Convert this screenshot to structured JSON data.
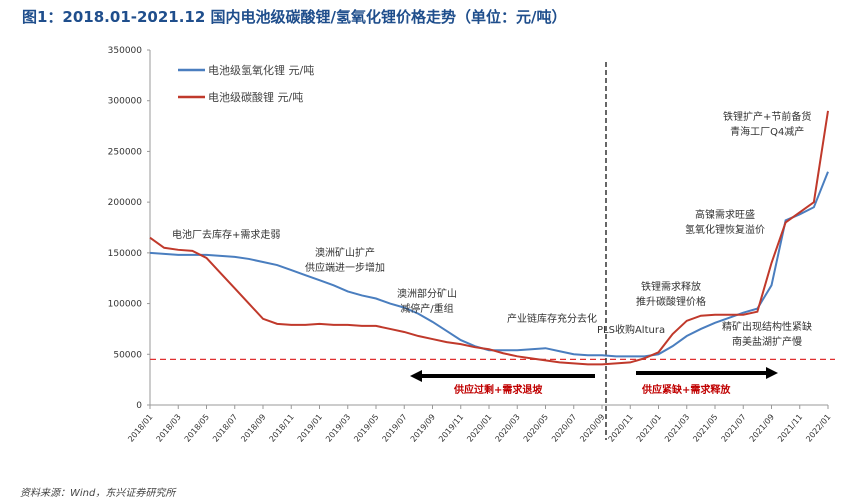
{
  "title": "图1：2018.01-2021.12 国内电池级碳酸锂/氢氧化锂价格走势（单位：元/吨）",
  "source": "资料来源：Wind，东兴证券研究所",
  "chart_data": {
    "type": "line",
    "title": "图1：2018.01-2021.12 国内电池级碳酸锂/氢氧化锂价格走势（单位：元/吨）",
    "ylim": [
      0,
      350000
    ],
    "yticks": [
      "0",
      "50000",
      "100000",
      "150000",
      "200000",
      "250000",
      "300000",
      "350000"
    ],
    "xticks": [
      "2018/01",
      "2018/03",
      "2018/05",
      "2018/07",
      "2018/09",
      "2018/11",
      "2019/01",
      "2019/03",
      "2019/05",
      "2019/07",
      "2019/09",
      "2019/11",
      "2020/01",
      "2020/03",
      "2020/05",
      "2020/07",
      "2020/09",
      "2020/11",
      "2021/01",
      "2021/03",
      "2021/05",
      "2021/07",
      "2021/09",
      "2021/11",
      "2022/01"
    ],
    "legend_position": "top-left",
    "series": [
      {
        "name": "电池级氢氧化锂 元/吨",
        "color": "#4a7ebf",
        "values": [
          150000,
          149000,
          148000,
          148000,
          148000,
          147000,
          146000,
          144000,
          141000,
          138000,
          133000,
          128000,
          123000,
          118000,
          112000,
          108000,
          105000,
          100000,
          96000,
          90000,
          82000,
          73000,
          64000,
          58000,
          54000,
          54000,
          54000,
          55000,
          56000,
          53000,
          50000,
          49000,
          49000,
          48000,
          48000,
          48000,
          50000,
          58000,
          68000,
          75000,
          81000,
          86000,
          91000,
          95000,
          118000,
          182000,
          188000,
          195000,
          230000
        ]
      },
      {
        "name": "电池级碳酸锂 元/吨",
        "color": "#c0392b",
        "values": [
          165000,
          155000,
          153000,
          152000,
          145000,
          130000,
          115000,
          100000,
          85000,
          80000,
          79000,
          79000,
          80000,
          79000,
          79000,
          78000,
          78000,
          75000,
          72000,
          68000,
          65000,
          62000,
          60000,
          57000,
          55000,
          51000,
          48000,
          46000,
          44000,
          42000,
          41000,
          40000,
          40000,
          41000,
          42000,
          46000,
          52000,
          70000,
          83000,
          88000,
          89000,
          89000,
          89000,
          92000,
          140000,
          180000,
          190000,
          200000,
          290000
        ]
      }
    ],
    "reference_line": {
      "value": 45000,
      "style": "dashed",
      "color": "#e03030"
    },
    "divider_date": "2020/09",
    "annotations": {
      "a1": "电池厂去库存+需求走弱",
      "a2": [
        "澳洲矿山扩产",
        "供应端进一步增加"
      ],
      "a3": [
        "澳洲部分矿山",
        "减停产/重组"
      ],
      "a4": "产业链库存充分去化",
      "a5": "PLS收购Altura",
      "a6": [
        "铁锂需求释放",
        "推升碳酸锂价格"
      ],
      "a7": [
        "精矿出现结构性紧缺",
        "南美盐湖扩产慢"
      ],
      "a8": [
        "高镍需求旺盛",
        "氢氧化锂恢复溢价"
      ],
      "a9": [
        "铁锂扩产+节前备货",
        "青海工厂Q4减产"
      ],
      "arrow_left": "供应过剩+需求退坡",
      "arrow_right": "供应紧缺+需求释放"
    }
  }
}
